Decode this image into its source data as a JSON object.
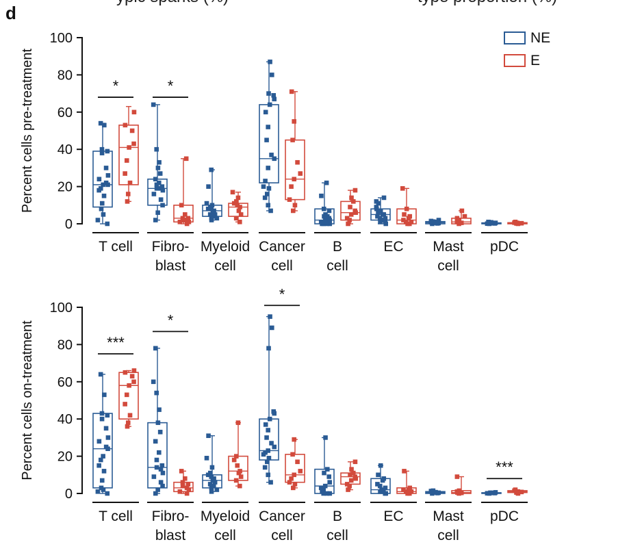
{
  "panel_label": "d",
  "top_fragments": [
    "ypic sparks (%)",
    "type proportion (%)"
  ],
  "colors": {
    "NE": "#2a5b94",
    "E": "#d24a3c",
    "axis": "#111111"
  },
  "categories": [
    [
      "T cell"
    ],
    [
      "Fibro-",
      "blast"
    ],
    [
      "Myeloid",
      "cell"
    ],
    [
      "Cancer",
      "cell"
    ],
    [
      "B",
      "cell"
    ],
    [
      "EC"
    ],
    [
      "Mast",
      "cell"
    ],
    [
      "pDC"
    ]
  ],
  "legend": [
    "NE",
    "E"
  ],
  "chart_data": [
    {
      "type": "box",
      "ylabel": "Percent cells pre-treatment",
      "ylim": [
        0,
        100
      ],
      "yticks": [
        0,
        20,
        40,
        60,
        80,
        100
      ],
      "groups": [
        "NE",
        "E"
      ],
      "boxes": [
        [
          {
            "min": 0,
            "q1": 9,
            "median": 21,
            "q3": 39,
            "max": 54,
            "points": [
              0,
              2,
              5,
              8,
              11,
              15,
              18,
              19,
              21,
              21,
              22,
              24,
              26,
              30,
              38,
              39,
              40,
              53,
              54
            ]
          },
          {
            "min": 12,
            "q1": 21,
            "median": 41,
            "q3": 53,
            "max": 63,
            "points": [
              12,
              16,
              22,
              27,
              34,
              41,
              43,
              50,
              53,
              60
            ]
          }
        ],
        [
          {
            "min": 2,
            "q1": 10,
            "median": 19,
            "q3": 24,
            "max": 64,
            "points": [
              2,
              6,
              10,
              13,
              16,
              18,
              19,
              19,
              20,
              21,
              22,
              24,
              27,
              30,
              33,
              40,
              64
            ]
          },
          {
            "min": 0,
            "q1": 1,
            "median": 3,
            "q3": 10,
            "max": 35,
            "points": [
              0,
              1,
              1,
              2,
              2,
              3,
              3,
              5,
              10,
              35
            ]
          }
        ],
        [
          {
            "min": 2,
            "q1": 4,
            "median": 7,
            "q3": 10,
            "max": 29,
            "points": [
              2,
              3,
              3,
              4,
              5,
              5,
              6,
              7,
              8,
              8,
              9,
              10,
              11,
              20,
              29
            ]
          },
          {
            "min": 1,
            "q1": 4,
            "median": 9,
            "q3": 11,
            "max": 17,
            "points": [
              1,
              3,
              5,
              7,
              9,
              10,
              11,
              12,
              14,
              17
            ]
          }
        ],
        [
          {
            "min": 7,
            "q1": 22,
            "median": 35,
            "q3": 64,
            "max": 87,
            "points": [
              7,
              10,
              14,
              16,
              19,
              20,
              23,
              30,
              35,
              37,
              45,
              52,
              60,
              64,
              67,
              69,
              70,
              80,
              87
            ]
          },
          {
            "min": 7,
            "q1": 13,
            "median": 24,
            "q3": 45,
            "max": 71,
            "points": [
              7,
              10,
              13,
              20,
              24,
              27,
              33,
              45,
              55,
              71
            ]
          }
        ],
        [
          {
            "min": 0,
            "q1": 0,
            "median": 2,
            "q3": 8,
            "max": 22,
            "points": [
              0,
              0,
              0,
              0,
              1,
              1,
              2,
              2,
              3,
              4,
              4,
              5,
              7,
              8,
              15,
              22
            ]
          },
          {
            "min": 0,
            "q1": 2,
            "median": 6,
            "q3": 12,
            "max": 18,
            "points": [
              0,
              2,
              3,
              5,
              6,
              7,
              9,
              12,
              14,
              18
            ]
          }
        ],
        [
          {
            "min": 0,
            "q1": 2,
            "median": 5,
            "q3": 8,
            "max": 14,
            "points": [
              0,
              1,
              1,
              2,
              2,
              3,
              3,
              4,
              5,
              5,
              6,
              7,
              8,
              9,
              11,
              12,
              14
            ]
          },
          {
            "min": 0,
            "q1": 0,
            "median": 2,
            "q3": 8,
            "max": 19,
            "points": [
              0,
              0,
              1,
              1,
              2,
              3,
              4,
              5,
              8,
              19
            ]
          }
        ],
        [
          {
            "min": 0,
            "q1": 0,
            "median": 0.6,
            "q3": 1.2,
            "max": 2,
            "points": [
              0,
              0.2,
              0.4,
              0.5,
              0.6,
              0.8,
              1,
              1.2,
              1.5,
              2
            ]
          },
          {
            "min": 0,
            "q1": 0,
            "median": 1,
            "q3": 3,
            "max": 7,
            "points": [
              0,
              0.5,
              1,
              1,
              2,
              3,
              4,
              7
            ]
          }
        ],
        [
          {
            "min": 0,
            "q1": 0,
            "median": 0.2,
            "q3": 0.5,
            "max": 1,
            "points": [
              0,
              0.1,
              0.2,
              0.3,
              0.4,
              0.5,
              0.8,
              1
            ]
          },
          {
            "min": 0,
            "q1": 0,
            "median": 0.3,
            "q3": 0.6,
            "max": 1,
            "points": [
              0,
              0.2,
              0.3,
              0.5,
              0.6,
              1
            ]
          }
        ]
      ],
      "significance": [
        {
          "category": 0,
          "label": "*",
          "y": 68
        },
        {
          "category": 1,
          "label": "*",
          "y": 68
        }
      ]
    },
    {
      "type": "box",
      "ylabel": "Percent cells on-treatment",
      "ylim": [
        0,
        100
      ],
      "yticks": [
        0,
        20,
        40,
        60,
        80,
        100
      ],
      "groups": [
        "NE",
        "E"
      ],
      "boxes": [
        [
          {
            "min": 0,
            "q1": 3,
            "median": 24,
            "q3": 43,
            "max": 64,
            "points": [
              0,
              1,
              2,
              3,
              7,
              12,
              15,
              18,
              20,
              24,
              25,
              28,
              30,
              35,
              40,
              42,
              43,
              53,
              64
            ]
          },
          {
            "min": 36,
            "q1": 40,
            "median": 58,
            "q3": 65,
            "max": 66,
            "points": [
              36,
              38,
              42,
              48,
              53,
              58,
              60,
              63,
              65,
              66
            ]
          }
        ],
        [
          {
            "min": 0,
            "q1": 3,
            "median": 14,
            "q3": 38,
            "max": 78,
            "points": [
              0,
              2,
              4,
              6,
              9,
              11,
              13,
              14,
              15,
              18,
              22,
              28,
              33,
              38,
              45,
              54,
              60,
              78
            ]
          },
          {
            "min": 0,
            "q1": 1,
            "median": 3,
            "q3": 6,
            "max": 12,
            "points": [
              0,
              1,
              2,
              3,
              4,
              5,
              6,
              8,
              12
            ]
          }
        ],
        [
          {
            "min": 1,
            "q1": 3,
            "median": 7,
            "q3": 10,
            "max": 31,
            "points": [
              1,
              2,
              3,
              4,
              5,
              6,
              7,
              8,
              9,
              10,
              11,
              14,
              19,
              31
            ]
          },
          {
            "min": 4,
            "q1": 7,
            "median": 12,
            "q3": 20,
            "max": 38,
            "points": [
              4,
              7,
              9,
              11,
              12,
              15,
              18,
              20,
              38
            ]
          }
        ],
        [
          {
            "min": 6,
            "q1": 18,
            "median": 23,
            "q3": 40,
            "max": 95,
            "points": [
              6,
              10,
              14,
              17,
              19,
              21,
              22,
              23,
              25,
              27,
              30,
              34,
              37,
              40,
              43,
              44,
              78,
              89,
              95
            ]
          },
          {
            "min": 3,
            "q1": 6,
            "median": 10,
            "q3": 21,
            "max": 29,
            "points": [
              3,
              5,
              6,
              8,
              10,
              12,
              17,
              21,
              29
            ]
          }
        ],
        [
          {
            "min": 0,
            "q1": 0,
            "median": 4,
            "q3": 13,
            "max": 30,
            "points": [
              0,
              0,
              0,
              1,
              2,
              3,
              4,
              6,
              9,
              11,
              13,
              30
            ]
          },
          {
            "min": 2,
            "q1": 5,
            "median": 9,
            "q3": 11,
            "max": 17,
            "points": [
              2,
              4,
              5,
              7,
              8,
              9,
              10,
              11,
              13,
              17
            ]
          }
        ],
        [
          {
            "min": 0,
            "q1": 0,
            "median": 2,
            "q3": 8,
            "max": 15,
            "points": [
              0,
              0,
              1,
              1,
              2,
              3,
              4,
              5,
              7,
              8,
              10,
              15
            ]
          },
          {
            "min": 0,
            "q1": 0,
            "median": 1,
            "q3": 3,
            "max": 12,
            "points": [
              0,
              0,
              1,
              1,
              2,
              2,
              3,
              12
            ]
          }
        ],
        [
          {
            "min": 0,
            "q1": 0,
            "median": 0.5,
            "q3": 1,
            "max": 1.5,
            "points": [
              0,
              0.2,
              0.4,
              0.5,
              0.7,
              1,
              1.3,
              1.5
            ]
          },
          {
            "min": 0,
            "q1": 0,
            "median": 0.5,
            "q3": 1.5,
            "max": 9,
            "points": [
              0,
              0.3,
              0.5,
              1,
              1.5,
              9
            ]
          }
        ],
        [
          {
            "min": 0,
            "q1": 0,
            "median": 0.2,
            "q3": 0.4,
            "max": 0.6,
            "points": [
              0,
              0.1,
              0.2,
              0.3,
              0.4,
              0.6
            ]
          },
          {
            "min": 0,
            "q1": 0.5,
            "median": 1,
            "q3": 1.5,
            "max": 2,
            "points": [
              0,
              0.5,
              0.8,
              1,
              1.5,
              2
            ]
          }
        ]
      ],
      "significance": [
        {
          "category": 0,
          "label": "***",
          "y": 75
        },
        {
          "category": 1,
          "label": "*",
          "y": 87
        },
        {
          "category": 3,
          "label": "*",
          "y": 101
        },
        {
          "category": 7,
          "label": "***",
          "y": 8
        }
      ]
    }
  ]
}
